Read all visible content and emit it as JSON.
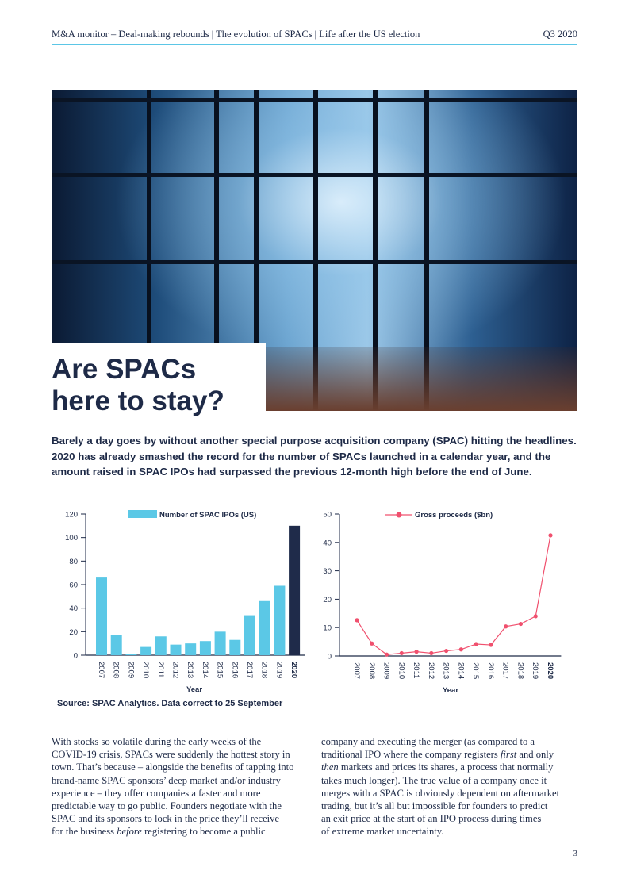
{
  "header": {
    "breadcrumb": "M&A monitor – Deal-making rebounds | The evolution of SPACs | Life after the US election",
    "issue": "Q3 2020"
  },
  "title_lines": [
    "Are SPACs",
    "here to stay?"
  ],
  "lead": "Barely a day goes by without another special purpose acquisition company (SPAC) hitting the headlines. 2020 has already smashed the record for the number of SPACs launched in a calendar year, and the amount raised in SPAC IPOs had surpassed the previous 12-month high before the end of June.",
  "colors": {
    "bar": "#5bc8e6",
    "bar_highlight": "#1f2b4a",
    "line": "#f0506e",
    "rule": "#5bc6e6",
    "text": "#1e2a47"
  },
  "chart_data": [
    {
      "type": "bar",
      "legend": "Number of SPAC IPOs (US)",
      "legend_position": "top",
      "categories": [
        "2007",
        "2008",
        "2009",
        "2010",
        "2011",
        "2012",
        "2013",
        "2014",
        "2015",
        "2016",
        "2017",
        "2018",
        "2019",
        "2020"
      ],
      "values": [
        66,
        17,
        1,
        7,
        16,
        9,
        10,
        12,
        20,
        13,
        34,
        46,
        59,
        110
      ],
      "xlabel": "Year",
      "ylabel": "",
      "ylim": [
        0,
        120
      ],
      "yticks": [
        0,
        20,
        40,
        60,
        80,
        100,
        120
      ],
      "highlight": "2020"
    },
    {
      "type": "line",
      "legend": "Gross proceeds ($bn)",
      "legend_position": "top",
      "categories": [
        "2007",
        "2008",
        "2009",
        "2010",
        "2011",
        "2012",
        "2013",
        "2014",
        "2015",
        "2016",
        "2017",
        "2018",
        "2019",
        "2020"
      ],
      "values": [
        12.6,
        4.4,
        0.5,
        1.0,
        1.5,
        1.0,
        1.8,
        2.3,
        4.2,
        3.9,
        10.4,
        11.3,
        14.0,
        42.5
      ],
      "xlabel": "Year",
      "ylabel": "",
      "ylim": [
        0,
        50
      ],
      "yticks": [
        0,
        10,
        20,
        30,
        40,
        50
      ],
      "highlight": "2020"
    }
  ],
  "source": "Source: SPAC Analytics. Data correct to 25 September",
  "body": {
    "left": [
      [
        {
          "t": "With stocks so volatile during the early weeks of the"
        }
      ],
      [
        {
          "t": "COVID-19 crisis, SPACs were suddenly the hottest story in"
        }
      ],
      [
        {
          "t": "town. That’s because – alongside the benefits of tapping into"
        }
      ],
      [
        {
          "t": "brand-name SPAC sponsors’ deep market and/or industry"
        }
      ],
      [
        {
          "t": "experience – they offer companies a faster and more"
        }
      ],
      [
        {
          "t": "predictable way to go public. Founders negotiate with the"
        }
      ],
      [
        {
          "t": "SPAC and its sponsors to lock in the price they’ll receive"
        }
      ],
      [
        {
          "t": "for the business "
        },
        {
          "t": "before",
          "i": true
        },
        {
          "t": " registering to become a public"
        }
      ]
    ],
    "right": [
      [
        {
          "t": "company and executing the merger (as compared to a"
        }
      ],
      [
        {
          "t": "traditional IPO where the company registers "
        },
        {
          "t": "first",
          "i": true
        },
        {
          "t": " and only"
        }
      ],
      [
        {
          "t": "then",
          "i": true
        },
        {
          "t": " markets and prices its shares, a process that normally"
        }
      ],
      [
        {
          "t": "takes much longer). The true value of a company once it"
        }
      ],
      [
        {
          "t": "merges with a SPAC is obviously dependent on aftermarket"
        }
      ],
      [
        {
          "t": "trading, but it’s all but impossible for founders to predict"
        }
      ],
      [
        {
          "t": "an exit price at the start of an IPO process during times"
        }
      ],
      [
        {
          "t": "of extreme market uncertainty."
        }
      ]
    ]
  },
  "page_number": "3"
}
